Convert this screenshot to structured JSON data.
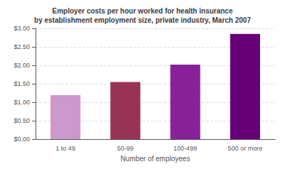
{
  "chart_data": {
    "type": "bar",
    "title": "Employer costs per hour worked for health insurance\nby establishment employment size, private industry, March 2007",
    "xlabel": "Number of employees",
    "categories": [
      "1 to 49",
      "50-99",
      "100-499",
      "500 or more"
    ],
    "values": [
      1.19,
      1.55,
      2.02,
      2.85
    ],
    "colors": [
      "#cc99cc",
      "#993355",
      "#882299",
      "#660077"
    ],
    "ylim": [
      0,
      3.0
    ],
    "yticks": [
      {
        "value": 0.0,
        "label": "$0.00"
      },
      {
        "value": 0.5,
        "label": "$0.50"
      },
      {
        "value": 1.0,
        "label": "$1.00"
      },
      {
        "value": 1.5,
        "label": "$1.50"
      },
      {
        "value": 2.0,
        "label": "$2.00"
      },
      {
        "value": 2.5,
        "label": "$2.50"
      },
      {
        "value": 3.0,
        "label": "$3.00"
      }
    ],
    "grid": true
  }
}
